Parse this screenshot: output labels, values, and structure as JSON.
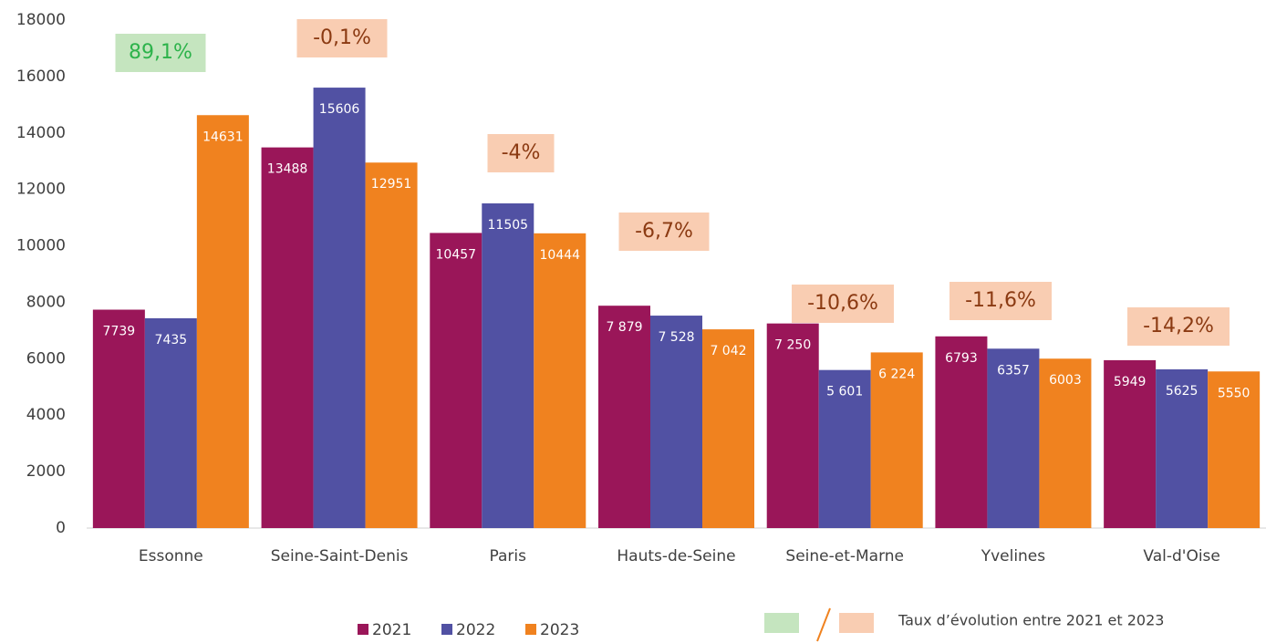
{
  "chart_data": {
    "type": "bar",
    "categories": [
      "Essonne",
      "Seine-Saint-Denis",
      "Paris",
      "Hauts-de-Seine",
      "Seine-et-Marne",
      "Yvelines",
      "Val-d'Oise"
    ],
    "series": [
      {
        "name": "2021",
        "color": "#9a1659",
        "values": [
          7739,
          13488,
          10457,
          7879,
          7250,
          6793,
          5949
        ],
        "value_labels": [
          "7739",
          "13488",
          "10457",
          "7 879",
          "7 250",
          "6793",
          "5949"
        ]
      },
      {
        "name": "2022",
        "color": "#5151a3",
        "values": [
          7435,
          15606,
          11505,
          7528,
          5601,
          6357,
          5625
        ],
        "value_labels": [
          "7435",
          "15606",
          "11505",
          "7 528",
          "5 601",
          "6357",
          "5625"
        ]
      },
      {
        "name": "2023",
        "color": "#f0821f",
        "values": [
          14631,
          12951,
          10444,
          7042,
          6224,
          6003,
          5550
        ],
        "value_labels": [
          "14631",
          "12951",
          "10444",
          "7 042",
          "6 224",
          "6003",
          "5550"
        ]
      }
    ],
    "annotations": [
      {
        "text": "89,1%",
        "color": "#2db34b",
        "fill": "#c5e5bf"
      },
      {
        "text": "-0,1%",
        "color": "#8b3a12",
        "fill": "#f9cdb2"
      },
      {
        "text": "-4%",
        "color": "#8b3a12",
        "fill": "#f9cdb2"
      },
      {
        "text": "-6,7%",
        "color": "#8b3a12",
        "fill": "#f9cdb2"
      },
      {
        "text": "-10,6%",
        "color": "#8b3a12",
        "fill": "#f9cdb2"
      },
      {
        "text": "-11,6%",
        "color": "#8b3a12",
        "fill": "#f9cdb2"
      },
      {
        "text": "-14,2%",
        "color": "#8b3a12",
        "fill": "#f9cdb2"
      }
    ],
    "note": "Taux d’évolution entre 2021 et 2023",
    "note_colors": [
      "#c5e5bf",
      "#f0821f",
      "#f9cdb2"
    ],
    "ylim": [
      0,
      18000
    ],
    "yticks": [
      0,
      2000,
      4000,
      6000,
      8000,
      10000,
      12000,
      14000,
      16000,
      18000
    ],
    "grid": false
  }
}
